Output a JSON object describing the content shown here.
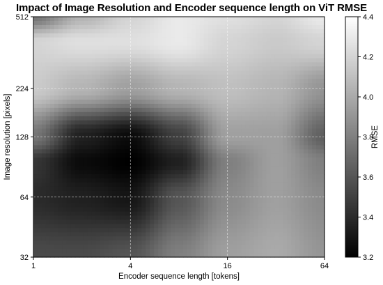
{
  "chart_data": {
    "type": "heatmap",
    "title": "Impact of Image Resolution and Encoder sequence length on ViT RMSE",
    "xlabel": "Encoder sequence length [tokens]",
    "ylabel": "Image resolution [pixels]",
    "colorbar_label": "RMSE",
    "x_scale": "log2",
    "y_scale": "log2",
    "x_ticks": [
      1,
      4,
      16,
      64
    ],
    "y_ticks": [
      32,
      64,
      128,
      224,
      512
    ],
    "xlim": [
      1,
      64
    ],
    "ylim": [
      32,
      512
    ],
    "colorbar_ticks": [
      3.2,
      3.4,
      3.6,
      3.8,
      4.0,
      4.2,
      4.4
    ],
    "clim": [
      3.2,
      4.4
    ],
    "colormap": "gray",
    "grid": true,
    "x": [
      1,
      2,
      4,
      8,
      16,
      32,
      64
    ],
    "y": [
      32,
      64,
      96,
      128,
      224,
      384,
      512
    ],
    "z": [
      [
        3.55,
        3.55,
        3.6,
        3.8,
        3.95,
        4.0,
        3.9
      ],
      [
        3.4,
        3.35,
        3.3,
        3.6,
        3.85,
        3.95,
        3.85
      ],
      [
        3.45,
        3.25,
        3.2,
        3.35,
        3.8,
        3.95,
        3.8
      ],
      [
        3.75,
        3.35,
        3.25,
        3.5,
        3.95,
        3.95,
        3.65
      ],
      [
        4.15,
        4.05,
        3.95,
        4.05,
        4.1,
        4.05,
        3.9
      ],
      [
        4.2,
        4.25,
        4.25,
        4.3,
        4.2,
        4.15,
        4.2
      ],
      [
        3.75,
        4.05,
        4.2,
        4.3,
        4.25,
        4.2,
        4.3
      ]
    ]
  }
}
